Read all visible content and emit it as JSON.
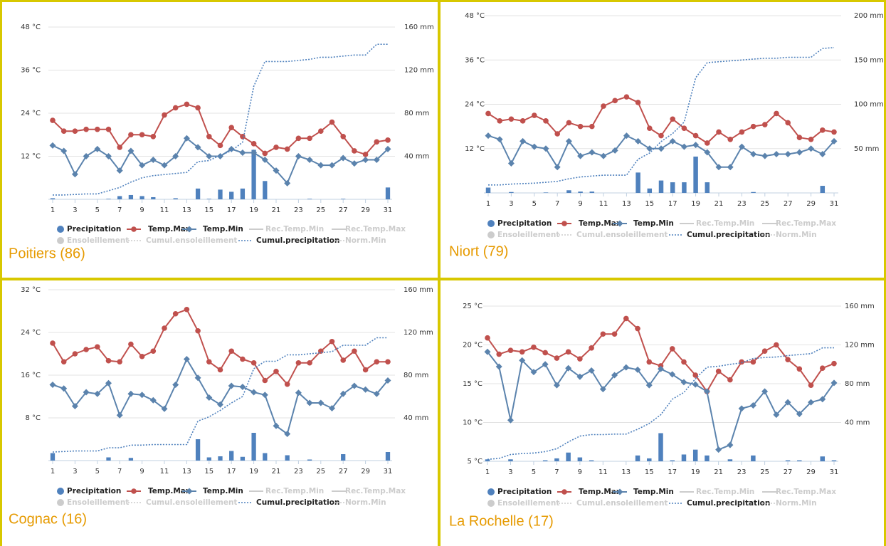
{
  "chart_data": [
    {
      "type": "combo",
      "title": "Poitiers (86)",
      "x": [
        1,
        2,
        3,
        4,
        5,
        6,
        7,
        8,
        9,
        10,
        11,
        12,
        13,
        14,
        15,
        16,
        17,
        18,
        19,
        20,
        21,
        22,
        23,
        24,
        25,
        26,
        27,
        28,
        29,
        30,
        31
      ],
      "xlim": [
        1,
        31
      ],
      "xticks": [
        1,
        3,
        5,
        7,
        9,
        11,
        13,
        15,
        17,
        19,
        21,
        23,
        25,
        27,
        29,
        31
      ],
      "ylim": [
        0,
        48
      ],
      "yticks": [
        {
          "value": 12,
          "label": "12 °C"
        },
        {
          "value": 24,
          "label": "24 °C"
        },
        {
          "value": 36,
          "label": "36 °C"
        },
        {
          "value": 48,
          "label": "48 °C"
        }
      ],
      "y2lim": [
        0,
        160
      ],
      "y2ticks": [
        {
          "value": 40,
          "label": "40 mm"
        },
        {
          "value": 80,
          "label": "80 mm"
        },
        {
          "value": 120,
          "label": "120 mm"
        },
        {
          "value": 160,
          "label": "160 mm"
        }
      ],
      "grid": true,
      "series": [
        {
          "name": "Precipitation",
          "style": "column",
          "color": "#4f81bd",
          "axis": "y2",
          "values": [
            1,
            0,
            0,
            0,
            0,
            0.5,
            3,
            4,
            3,
            2,
            0,
            1,
            0,
            10,
            0.5,
            9,
            7,
            10,
            46,
            17,
            0,
            0,
            0,
            0.5,
            0,
            0,
            0.5,
            0,
            0,
            0,
            11
          ]
        },
        {
          "name": "Temp.Max",
          "style": "line",
          "marker": "circle",
          "color": "#c0504d",
          "values": [
            22,
            19,
            19,
            19.5,
            19.5,
            19.5,
            14.5,
            18,
            18,
            17.5,
            23.5,
            25.5,
            26.5,
            25.5,
            17.5,
            15,
            20,
            17.5,
            15.5,
            12.8,
            14.5,
            14,
            17,
            17,
            19,
            21.5,
            17.5,
            13.5,
            12.5,
            16,
            16.5
          ]
        },
        {
          "name": "Temp.Min",
          "style": "line",
          "marker": "diamond",
          "color": "#5b83ad",
          "values": [
            15,
            13.5,
            7,
            12,
            14,
            12,
            8,
            13.5,
            9.5,
            11,
            9.5,
            12,
            17,
            14.5,
            12,
            12,
            14,
            13,
            13,
            11,
            8,
            4.5,
            12,
            11,
            9.5,
            9.5,
            11.5,
            10,
            11,
            11,
            14
          ]
        },
        {
          "name": "Rec.Temp.Min",
          "style": "line",
          "visible": false
        },
        {
          "name": "Rec.Temp.Max",
          "style": "line",
          "visible": false
        },
        {
          "name": "Ensoleillement",
          "style": "column",
          "visible": false
        },
        {
          "name": "Cumul.ensoleillement",
          "style": "dotted",
          "visible": false
        },
        {
          "name": "Cumul.precipitation",
          "style": "dotted",
          "color": "#4f81bd",
          "axis": "y2",
          "values": [
            4,
            4,
            4.5,
            5,
            5,
            8,
            11,
            16,
            20,
            22,
            23,
            24,
            25,
            35,
            36,
            41,
            45,
            53,
            105,
            128,
            128,
            128,
            129,
            130,
            132,
            132,
            133,
            134,
            134,
            144,
            144
          ]
        },
        {
          "name": "Norm.Min",
          "style": "dotted",
          "visible": false
        }
      ]
    },
    {
      "type": "combo",
      "title": "Niort (79)",
      "x": [
        1,
        2,
        3,
        4,
        5,
        6,
        7,
        8,
        9,
        10,
        11,
        12,
        13,
        14,
        15,
        16,
        17,
        18,
        19,
        20,
        21,
        22,
        23,
        24,
        25,
        26,
        27,
        28,
        29,
        30,
        31
      ],
      "xlim": [
        1,
        31
      ],
      "xticks": [
        1,
        3,
        5,
        7,
        9,
        11,
        13,
        15,
        17,
        19,
        21,
        23,
        25,
        27,
        29,
        31
      ],
      "ylim": [
        0,
        48
      ],
      "yticks": [
        {
          "value": 12,
          "label": "12 °C"
        },
        {
          "value": 24,
          "label": "24 °C"
        },
        {
          "value": 36,
          "label": "36 °C"
        },
        {
          "value": 48,
          "label": "48 °C"
        }
      ],
      "y2lim": [
        0,
        200
      ],
      "y2ticks": [
        {
          "value": 50,
          "label": "50 mm"
        },
        {
          "value": 100,
          "label": "100 mm"
        },
        {
          "value": 150,
          "label": "150 mm"
        },
        {
          "value": 200,
          "label": "200 mm"
        }
      ],
      "grid": true,
      "series": [
        {
          "name": "Precipitation",
          "style": "column",
          "color": "#4f81bd",
          "axis": "y2",
          "values": [
            6,
            0,
            1,
            0,
            0,
            0.5,
            0,
            3,
            1.5,
            1.5,
            0,
            0,
            0,
            23,
            5,
            14,
            12,
            12,
            41,
            12,
            0,
            0,
            0,
            1,
            0,
            0,
            0,
            0,
            0,
            8,
            0
          ]
        },
        {
          "name": "Temp.Max",
          "style": "line",
          "marker": "circle",
          "color": "#c0504d",
          "values": [
            21.5,
            19.5,
            20,
            19.5,
            21,
            19.5,
            16,
            19,
            18,
            18,
            23.5,
            25,
            26,
            24.5,
            17.5,
            15.5,
            20,
            17.5,
            15.5,
            13.5,
            16.5,
            14.5,
            16.5,
            18,
            18.5,
            21.5,
            19,
            15,
            14.5,
            17,
            16.5
          ]
        },
        {
          "name": "Temp.Min",
          "style": "line",
          "marker": "diamond",
          "color": "#5b83ad",
          "values": [
            15.5,
            14.5,
            8,
            14,
            12.5,
            12,
            7,
            14,
            10,
            11,
            10,
            11.5,
            15.5,
            14,
            12,
            12,
            14,
            12.5,
            13,
            11,
            7,
            7,
            12.5,
            10.5,
            10,
            10.5,
            10.5,
            11,
            12,
            10.5,
            14
          ]
        },
        {
          "name": "Rec.Temp.Min",
          "style": "line",
          "visible": false
        },
        {
          "name": "Rec.Temp.Max",
          "style": "line",
          "visible": false
        },
        {
          "name": "Ensoleillement",
          "style": "column",
          "visible": false
        },
        {
          "name": "Cumul.ensoleillement",
          "style": "dotted",
          "visible": false
        },
        {
          "name": "Cumul.precipitation",
          "style": "dotted",
          "color": "#4f81bd",
          "axis": "y2",
          "values": [
            9,
            9,
            10,
            10.5,
            11,
            12,
            13,
            16,
            18,
            19,
            20,
            20,
            20,
            38,
            45,
            58,
            67,
            80,
            130,
            147,
            148,
            149,
            150,
            151,
            152,
            152,
            153,
            153,
            153,
            163,
            164
          ]
        },
        {
          "name": "Norm.Min",
          "style": "dotted",
          "visible": false
        }
      ]
    },
    {
      "type": "combo",
      "title": "Cognac (16)",
      "x": [
        1,
        2,
        3,
        4,
        5,
        6,
        7,
        8,
        9,
        10,
        11,
        12,
        13,
        14,
        15,
        16,
        17,
        18,
        19,
        20,
        21,
        22,
        23,
        24,
        25,
        26,
        27,
        28,
        29,
        30,
        31
      ],
      "xlim": [
        1,
        31
      ],
      "xticks": [
        1,
        3,
        5,
        7,
        9,
        11,
        13,
        15,
        17,
        19,
        21,
        23,
        25,
        27,
        29,
        31
      ],
      "ylim": [
        0,
        32
      ],
      "yticks": [
        {
          "value": 8,
          "label": "8 °C"
        },
        {
          "value": 16,
          "label": "16 °C"
        },
        {
          "value": 24,
          "label": "24 °C"
        },
        {
          "value": 32,
          "label": "32 °C"
        }
      ],
      "y2lim": [
        0,
        160
      ],
      "y2ticks": [
        {
          "value": 40,
          "label": "40 mm"
        },
        {
          "value": 80,
          "label": "80 mm"
        },
        {
          "value": 120,
          "label": "120 mm"
        },
        {
          "value": 160,
          "label": "160 mm"
        }
      ],
      "grid": true,
      "series": [
        {
          "name": "Precipitation",
          "style": "column",
          "color": "#4f81bd",
          "axis": "y2",
          "values": [
            7,
            0,
            0,
            0,
            0,
            3,
            0,
            2.5,
            0,
            0,
            0,
            0,
            0,
            20,
            3,
            4,
            9,
            3.5,
            26,
            7,
            0,
            5,
            0,
            1,
            0,
            0,
            6,
            0,
            0,
            0,
            8
          ]
        },
        {
          "name": "Temp.Max",
          "style": "line",
          "marker": "circle",
          "color": "#c0504d",
          "values": [
            22,
            18.5,
            20,
            20.8,
            21.3,
            18.7,
            18.5,
            21.8,
            19.5,
            20.5,
            24.8,
            27.5,
            28.3,
            24.3,
            18.5,
            17,
            20.5,
            19,
            18.3,
            15,
            16.7,
            14.3,
            18.3,
            18.3,
            20.5,
            22.3,
            18.8,
            20.5,
            17,
            18.5,
            18.5
          ]
        },
        {
          "name": "Temp.Min",
          "style": "line",
          "marker": "diamond",
          "color": "#5b83ad",
          "values": [
            14.2,
            13.5,
            10.2,
            12.8,
            12.5,
            14.5,
            8.5,
            12.5,
            12.3,
            11.3,
            9.7,
            14.2,
            19,
            15.5,
            11.8,
            10.5,
            14,
            13.8,
            12.8,
            12.3,
            6.5,
            5,
            12.7,
            10.8,
            10.8,
            9.8,
            12.5,
            14,
            13.3,
            12.5,
            15
          ]
        },
        {
          "name": "Rec.Temp.Min",
          "style": "line",
          "visible": false
        },
        {
          "name": "Rec.Temp.Max",
          "style": "line",
          "visible": false
        },
        {
          "name": "Ensoleillement",
          "style": "column",
          "visible": false
        },
        {
          "name": "Cumul.ensoleillement",
          "style": "dotted",
          "visible": false
        },
        {
          "name": "Cumul.precipitation",
          "style": "dotted",
          "color": "#4f81bd",
          "axis": "y2",
          "values": [
            8,
            8.5,
            9,
            9,
            9,
            12,
            12,
            14.5,
            14.5,
            15,
            15,
            15,
            15,
            37,
            41,
            47,
            54,
            60,
            86,
            93,
            93,
            99,
            99,
            100,
            101,
            102,
            108,
            108,
            108,
            115,
            115
          ]
        },
        {
          "name": "Norm.Min",
          "style": "dotted",
          "visible": false
        }
      ]
    },
    {
      "type": "combo",
      "title": "La Rochelle (17)",
      "x": [
        1,
        2,
        3,
        4,
        5,
        6,
        7,
        8,
        9,
        10,
        11,
        12,
        13,
        14,
        15,
        16,
        17,
        18,
        19,
        20,
        21,
        22,
        23,
        24,
        25,
        26,
        27,
        28,
        29,
        30,
        31
      ],
      "xlim": [
        1,
        31
      ],
      "xticks": [
        1,
        3,
        5,
        7,
        9,
        11,
        13,
        15,
        17,
        19,
        21,
        23,
        25,
        27,
        29,
        31
      ],
      "ylim": [
        5,
        25
      ],
      "yticks": [
        {
          "value": 5,
          "label": "5 °C"
        },
        {
          "value": 10,
          "label": "10 °C"
        },
        {
          "value": 15,
          "label": "15 °C"
        },
        {
          "value": 20,
          "label": "20 °C"
        },
        {
          "value": 25,
          "label": "25 °C"
        }
      ],
      "y2lim": [
        0,
        160
      ],
      "y2ticks": [
        {
          "value": 40,
          "label": "40 mm"
        },
        {
          "value": 80,
          "label": "80 mm"
        },
        {
          "value": 120,
          "label": "120 mm"
        },
        {
          "value": 160,
          "label": "160 mm"
        }
      ],
      "grid": true,
      "series": [
        {
          "name": "Precipitation",
          "style": "column",
          "color": "#4f81bd",
          "axis": "y2",
          "values": [
            2,
            0,
            2,
            0,
            0,
            1,
            3,
            9,
            4,
            1,
            0,
            0,
            0,
            6,
            3,
            29,
            1,
            7,
            12,
            6,
            0,
            2,
            0,
            6,
            0,
            0,
            1,
            1,
            0,
            5,
            1
          ]
        },
        {
          "name": "Temp.Max",
          "style": "line",
          "marker": "circle",
          "color": "#c0504d",
          "values": [
            20.9,
            18.8,
            19.3,
            19.1,
            19.7,
            19,
            18.3,
            19.1,
            18.2,
            19.6,
            21.4,
            21.4,
            23.4,
            22.1,
            17.8,
            17.3,
            19.5,
            17.8,
            16.1,
            14,
            16.6,
            15.5,
            17.8,
            17.8,
            19.2,
            20,
            18.1,
            16.9,
            14.8,
            17,
            17.6
          ]
        },
        {
          "name": "Temp.Min",
          "style": "line",
          "marker": "diamond",
          "color": "#5b83ad",
          "values": [
            19.1,
            17.2,
            10.3,
            18,
            16.5,
            17.5,
            14.8,
            17,
            15.9,
            16.7,
            14.3,
            16.1,
            17.1,
            16.8,
            14.8,
            16.9,
            16.2,
            15.2,
            14.9,
            14,
            6.5,
            7.1,
            11.8,
            12.2,
            14,
            11,
            12.6,
            11.1,
            12.6,
            13,
            15.1
          ]
        },
        {
          "name": "Rec.Temp.Min",
          "style": "line",
          "visible": false
        },
        {
          "name": "Rec.Temp.Max",
          "style": "line",
          "visible": false
        },
        {
          "name": "Ensoleillement",
          "style": "column",
          "visible": false
        },
        {
          "name": "Cumul.ensoleillement",
          "style": "dotted",
          "visible": false
        },
        {
          "name": "Cumul.precipitation",
          "style": "dotted",
          "color": "#4f81bd",
          "axis": "y2",
          "values": [
            2,
            3,
            7,
            8,
            8.5,
            10,
            13,
            20,
            26,
            27.5,
            27.5,
            28,
            28,
            33,
            39,
            48,
            64,
            71,
            85,
            97,
            98,
            100,
            101.5,
            106,
            107,
            107.5,
            109,
            110,
            111,
            117,
            117
          ]
        },
        {
          "name": "Norm.Min",
          "style": "dotted",
          "visible": false
        }
      ]
    }
  ]
}
